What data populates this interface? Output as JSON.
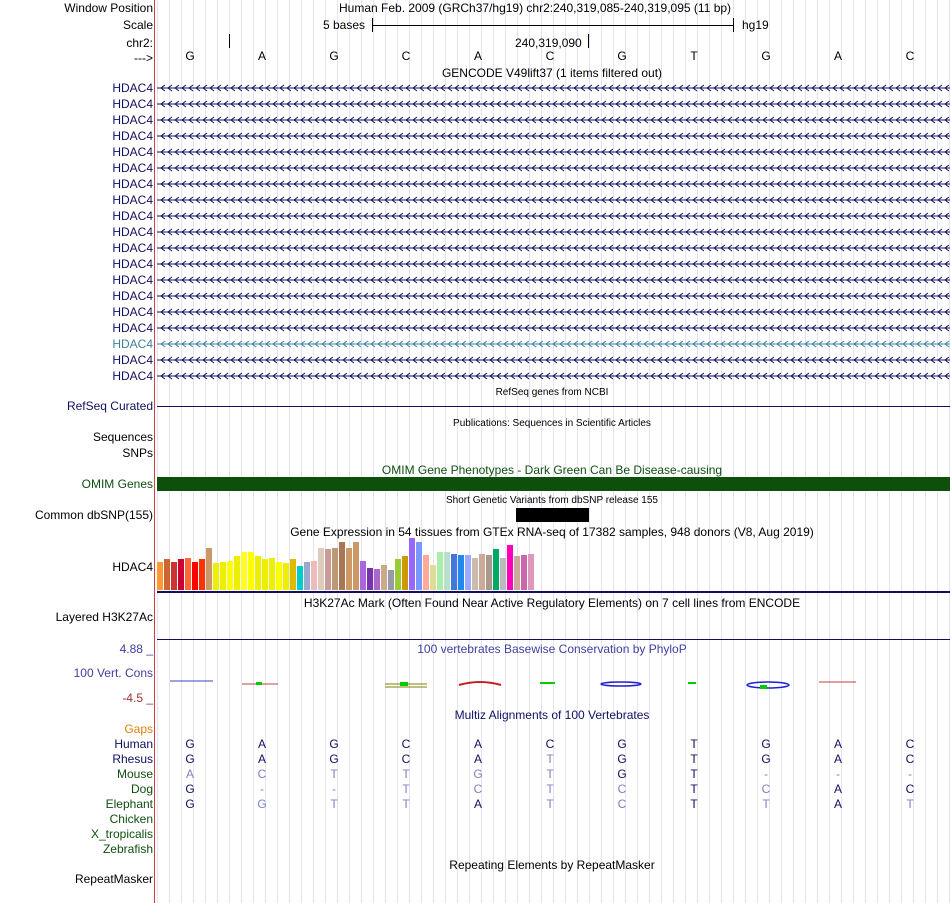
{
  "header": {
    "labels": {
      "window_position": "Window Position",
      "scale": "Scale",
      "chrom": "chr2:",
      "strand": "--->"
    },
    "assembly_title": "Human Feb. 2009 (GRCh37/hg19)   chr2:240,319,085-240,319,095 (11 bp)",
    "scale_text": "5 bases",
    "scale_db": "hg19",
    "coordinate": "240,319,090"
  },
  "sequence": [
    "G",
    "A",
    "G",
    "C",
    "A",
    "C",
    "G",
    "T",
    "G",
    "A",
    "C"
  ],
  "gencode": {
    "title": "GENCODE V49lift37 (1 items filtered out)",
    "items": [
      {
        "label": "HDAC4",
        "highlight": false
      },
      {
        "label": "HDAC4",
        "highlight": false
      },
      {
        "label": "HDAC4",
        "highlight": false
      },
      {
        "label": "HDAC4",
        "highlight": false
      },
      {
        "label": "HDAC4",
        "highlight": false
      },
      {
        "label": "HDAC4",
        "highlight": false
      },
      {
        "label": "HDAC4",
        "highlight": false
      },
      {
        "label": "HDAC4",
        "highlight": false
      },
      {
        "label": "HDAC4",
        "highlight": false
      },
      {
        "label": "HDAC4",
        "highlight": false
      },
      {
        "label": "HDAC4",
        "highlight": false
      },
      {
        "label": "HDAC4",
        "highlight": false
      },
      {
        "label": "HDAC4",
        "highlight": false
      },
      {
        "label": "HDAC4",
        "highlight": false
      },
      {
        "label": "HDAC4",
        "highlight": false
      },
      {
        "label": "HDAC4",
        "highlight": false
      },
      {
        "label": "HDAC4",
        "highlight": true
      },
      {
        "label": "HDAC4",
        "highlight": false
      },
      {
        "label": "HDAC4",
        "highlight": false
      }
    ],
    "color": "#101060",
    "highlight_color": "#3c80a0"
  },
  "refseq": {
    "title": "RefSeq genes from NCBI",
    "label": "RefSeq Curated"
  },
  "publications": {
    "title": "Publications: Sequences in Scientific Articles",
    "labels": [
      "Sequences",
      "SNPs"
    ]
  },
  "omim": {
    "title": "OMIM Gene Phenotypes - Dark Green Can Be Disease-causing",
    "label": "OMIM Genes",
    "color": "#0c500c"
  },
  "dbsnp": {
    "title": "Short Genetic Variants from dbSNP release 155",
    "label": "Common dbSNP(155)"
  },
  "gtex": {
    "title": "Gene Expression in 54 tissues from GTEx RNA-seq of 17382 samples, 948 donors (V8, Aug 2019)",
    "label": "HDAC4",
    "values": [
      20,
      22,
      20,
      22,
      23,
      20,
      22,
      30,
      19,
      20,
      21,
      24,
      27,
      27,
      24,
      22,
      23,
      20,
      19,
      22,
      17,
      20,
      21,
      30,
      29,
      30,
      34,
      30,
      34,
      21,
      16,
      15,
      18,
      14,
      22,
      24,
      37,
      34,
      25,
      18,
      27,
      27,
      26,
      25,
      25,
      23,
      26,
      25,
      29,
      23,
      32,
      24,
      25,
      26
    ],
    "colors": [
      "#ff9933",
      "#cc6633",
      "#cc3333",
      "#cc0033",
      "#ff6633",
      "#ff0000",
      "#ff3300",
      "#cc9966",
      "#eeee00",
      "#eeee00",
      "#ffff00",
      "#eeee00",
      "#ffff22",
      "#ffff00",
      "#eeee00",
      "#eeee00",
      "#eeee00",
      "#ffff00",
      "#eeee00",
      "#ddbb00",
      "#00cccc",
      "#99aacc",
      "#eebbbb",
      "#ddccbb",
      "#cc9999",
      "#bb9977",
      "#aa7755",
      "#cc9966",
      "#cc9966",
      "#aa66dd",
      "#7733aa",
      "#aa66cc",
      "#ccaa88",
      "#9999aa",
      "#99cc33",
      "#cc9900",
      "#9966ff",
      "#7799ff",
      "#ffaa99",
      "#dddd99",
      "#aaeeaa",
      "#bbddcc",
      "#4477dd",
      "#2288ee",
      "#99aaff",
      "#ccbbaa",
      "#ccaa99",
      "#aa9988",
      "#00aa66",
      "#bbbbbb",
      "#ff00bb",
      "#ccaa99",
      "#cc66aa",
      "#dd99bb"
    ]
  },
  "h3k27ac": {
    "title": "H3K27Ac Mark (Often Found Near Active Regulatory Elements) on 7 cell lines from ENCODE",
    "label": "Layered H3K27Ac"
  },
  "phylop": {
    "title": "100 vertebrates Basewise Conservation by PhyloP",
    "label": "100 Vert. Cons",
    "max": "4.88 _",
    "min": "-4.5 _"
  },
  "multiz": {
    "title": "Multiz Alignments of 100 Vertebrates",
    "gaps_label": "Gaps",
    "species": [
      {
        "name": "Human",
        "bases": [
          "G",
          "A",
          "G",
          "C",
          "A",
          "C",
          "G",
          "T",
          "G",
          "A",
          "C"
        ],
        "match": [
          1,
          1,
          1,
          1,
          1,
          1,
          1,
          1,
          1,
          1,
          1
        ]
      },
      {
        "name": "Rhesus",
        "bases": [
          "G",
          "A",
          "G",
          "C",
          "A",
          "T",
          "G",
          "T",
          "G",
          "A",
          "C"
        ],
        "match": [
          1,
          1,
          1,
          1,
          1,
          0,
          1,
          1,
          1,
          1,
          1
        ]
      },
      {
        "name": "Mouse",
        "bases": [
          "A",
          "C",
          "T",
          "T",
          "G",
          "T",
          "G",
          "T",
          "-",
          "-",
          "-"
        ],
        "match": [
          0,
          0,
          0,
          0,
          0,
          0,
          1,
          1,
          0,
          0,
          0
        ]
      },
      {
        "name": "Dog",
        "bases": [
          "G",
          "-",
          "-",
          "T",
          "C",
          "T",
          "C",
          "T",
          "C",
          "A",
          "C"
        ],
        "match": [
          1,
          0,
          0,
          0,
          0,
          0,
          0,
          1,
          0,
          1,
          1
        ]
      },
      {
        "name": "Elephant",
        "bases": [
          "G",
          "G",
          "T",
          "T",
          "A",
          "T",
          "C",
          "T",
          "T",
          "A",
          "T"
        ],
        "match": [
          1,
          0,
          0,
          0,
          1,
          0,
          0,
          1,
          0,
          1,
          0
        ]
      },
      {
        "name": "Chicken",
        "bases": [],
        "match": []
      },
      {
        "name": "X_tropicalis",
        "bases": [],
        "match": []
      },
      {
        "name": "Zebrafish",
        "bases": [],
        "match": []
      }
    ]
  },
  "repeatmasker": {
    "title": "Repeating Elements by RepeatMasker",
    "label": "RepeatMasker"
  }
}
